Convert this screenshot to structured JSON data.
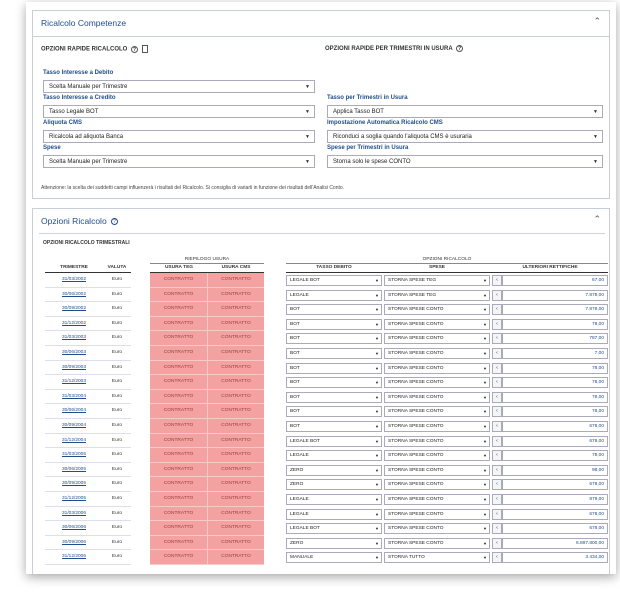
{
  "section1": {
    "title": "Ricalcolo Competenze",
    "left_heading": "OPZIONI RAPIDE RICALCOLO",
    "right_heading": "OPZIONI RAPIDE PER TRIMESTRI IN USURA",
    "fields": {
      "tasso_debito": {
        "label": "Tasso Interesse a Debito",
        "value": "Scelta Manuale per Trimestre"
      },
      "tasso_credito": {
        "label": "Tasso Interesse a Credito",
        "value": "Tasso Legale BOT"
      },
      "tasso_usura": {
        "label": "Tasso per Trimestri in Usura",
        "value": "Applica Tasso BOT"
      },
      "aliquota_cms": {
        "label": "Aliquota CMS",
        "value": "Ricalcola ad aliquota Banca"
      },
      "auto_cms": {
        "label": "Impostazione Automatica Ricalcolo CMS",
        "value": "Riconduci a soglia quando l'aliquota CMS è usuraria"
      },
      "spese": {
        "label": "Spese",
        "value": "Scelta Manuale per Trimestre"
      },
      "spese_usura": {
        "label": "Spese per Trimestri in Usura",
        "value": "Storna solo le spese CONTO"
      }
    },
    "note": "Attenzione: la scelta dei suddetti campi influenzerà i risultati del Ricalcolo. Si consiglia di variarli in funzione dei risultati dell'Analisi Conto."
  },
  "section2": {
    "title": "Opzioni Ricalcolo",
    "sub_heading": "OPZIONI RICALCOLO TRIMESTRALI",
    "group_riepilogo": "RIEPILOGO USURA",
    "group_opzioni": "OPZIONI RICALCOLO",
    "headers": {
      "trimestre": "TRIMESTRE",
      "valuta": "VALUTA",
      "usura_teg": "USURA TEG",
      "usura_cms": "USURA CMS",
      "tasso_debito": "TASSO DEBITO",
      "spese": "SPESE",
      "ulteriori": "ULTERIORI RETTIFICHE"
    },
    "rows": [
      {
        "trimestre": "31/03/2002",
        "valuta": "Euro",
        "teg": "CONTRATTO",
        "cms": "CONTRATTO",
        "tasso": "LEGALE BOT",
        "spese": "STORNA SPESE TEG",
        "ult": "67,00"
      },
      {
        "trimestre": "30/06/2002",
        "valuta": "Euro",
        "teg": "CONTRATTO",
        "cms": "CONTRATTO",
        "tasso": "LEGALE",
        "spese": "STORNA SPESE TEG",
        "ult": "7.878,00"
      },
      {
        "trimestre": "30/09/2002",
        "valuta": "Euro",
        "teg": "CONTRATTO",
        "cms": "CONTRATTO",
        "tasso": "BOT",
        "spese": "STORNA SPESE CONTO",
        "ult": "7.878,00"
      },
      {
        "trimestre": "31/12/2002",
        "valuta": "Euro",
        "teg": "CONTRATTO",
        "cms": "CONTRATTO",
        "tasso": "BOT",
        "spese": "STORNA SPESE CONTO",
        "ult": "78,00"
      },
      {
        "trimestre": "31/03/2003",
        "valuta": "Euro",
        "teg": "CONTRATTO",
        "cms": "CONTRATTO",
        "tasso": "BOT",
        "spese": "STORNA SPESE CONTO",
        "ult": "787,00"
      },
      {
        "trimestre": "30/06/2003",
        "valuta": "Euro",
        "teg": "CONTRATTO",
        "cms": "CONTRATTO",
        "tasso": "BOT",
        "spese": "STORNA SPESE CONTO",
        "ult": "7,00"
      },
      {
        "trimestre": "30/09/2003",
        "valuta": "Euro",
        "teg": "CONTRATTO",
        "cms": "CONTRATTO",
        "tasso": "BOT",
        "spese": "STORNA SPESE CONTO",
        "ult": "78,00"
      },
      {
        "trimestre": "31/12/2003",
        "valuta": "Euro",
        "teg": "CONTRATTO",
        "cms": "CONTRATTO",
        "tasso": "BOT",
        "spese": "STORNA SPESE CONTO",
        "ult": "78,00"
      },
      {
        "trimestre": "31/03/2004",
        "valuta": "Euro",
        "teg": "CONTRATTO",
        "cms": "CONTRATTO",
        "tasso": "BOT",
        "spese": "STORNA SPESE CONTO",
        "ult": "78,00"
      },
      {
        "trimestre": "30/06/2004",
        "valuta": "Euro",
        "teg": "CONTRATTO",
        "cms": "CONTRATTO",
        "tasso": "BOT",
        "spese": "STORNA SPESE CONTO",
        "ult": "78,00"
      },
      {
        "trimestre": "30/09/2004",
        "valuta": "Euro",
        "teg": "CONTRATTO",
        "cms": "CONTRATTO",
        "tasso": "BOT",
        "spese": "STORNA SPESE CONTO",
        "ult": "678,00"
      },
      {
        "trimestre": "31/12/2004",
        "valuta": "Euro",
        "teg": "CONTRATTO",
        "cms": "CONTRATTO",
        "tasso": "LEGALE BOT",
        "spese": "STORNA SPESE CONTO",
        "ult": "678,00"
      },
      {
        "trimestre": "31/03/2005",
        "valuta": "Euro",
        "teg": "CONTRATTO",
        "cms": "CONTRATTO",
        "tasso": "LEGALE",
        "spese": "STORNA SPESE CONTO",
        "ult": "78,00"
      },
      {
        "trimestre": "30/06/2005",
        "valuta": "Euro",
        "teg": "CONTRATTO",
        "cms": "CONTRATTO",
        "tasso": "ZERO",
        "spese": "STORNA SPESE CONTO",
        "ult": "98,00"
      },
      {
        "trimestre": "30/09/2005",
        "valuta": "Euro",
        "teg": "CONTRATTO",
        "cms": "CONTRATTO",
        "tasso": "ZERO",
        "spese": "STORNA SPESE CONTO",
        "ult": "678,00"
      },
      {
        "trimestre": "31/12/2005",
        "valuta": "Euro",
        "teg": "CONTRATTO",
        "cms": "CONTRATTO",
        "tasso": "LEGALE",
        "spese": "STORNA SPESE CONTO",
        "ult": "879,00"
      },
      {
        "trimestre": "31/03/2006",
        "valuta": "Euro",
        "teg": "CONTRATTO",
        "cms": "CONTRATTO",
        "tasso": "LEGALE",
        "spese": "STORNA SPESE CONTO",
        "ult": "678,00"
      },
      {
        "trimestre": "30/06/2006",
        "valuta": "Euro",
        "teg": "CONTRATTO",
        "cms": "CONTRATTO",
        "tasso": "LEGALE BOT",
        "spese": "STORNA SPESE CONTO",
        "ult": "678,00"
      },
      {
        "trimestre": "30/09/2006",
        "valuta": "Euro",
        "teg": "CONTRATTO",
        "cms": "CONTRATTO",
        "tasso": "ZERO",
        "spese": "STORNA SPESE CONTO",
        "ult": "6.897.800,00"
      },
      {
        "trimestre": "31/12/2006",
        "valuta": "Euro",
        "teg": "CONTRATTO",
        "cms": "CONTRATTO",
        "tasso": "MANUALE",
        "spese": "STORNA TUTTO",
        "ult": "3.434,00"
      }
    ]
  }
}
